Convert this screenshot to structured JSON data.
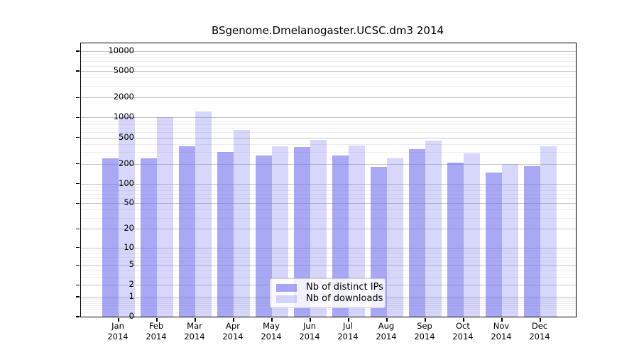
{
  "title": "BSgenome.Dmelanogaster.UCSC.dm3 2014",
  "colors": {
    "ips_bar": "rgba(102,102,238,0.57)",
    "downloads_bar": "rgba(102,102,238,0.26)",
    "major_grid": "#c6c6c6",
    "minor_grid": "#ededed",
    "axis": "#000000"
  },
  "chart_data": {
    "type": "bar",
    "title": "BSgenome.Dmelanogaster.UCSC.dm3 2014",
    "categories": [
      "Jan 2014",
      "Feb 2014",
      "Mar 2014",
      "Apr 2014",
      "May 2014",
      "Jun 2014",
      "Jul 2014",
      "Aug 2014",
      "Sep 2014",
      "Oct 2014",
      "Nov 2014",
      "Dec 2014"
    ],
    "series": [
      {
        "name": "Nb of distinct IPs",
        "values": [
          240,
          240,
          370,
          300,
          270,
          355,
          265,
          180,
          330,
          210,
          148,
          185
        ]
      },
      {
        "name": "Nb of downloads",
        "values": [
          1050,
          1010,
          1230,
          650,
          370,
          460,
          375,
          240,
          450,
          290,
          200,
          365
        ]
      }
    ],
    "y_scale": "log10(value+1)",
    "y_ticks": [
      0,
      1,
      2,
      5,
      10,
      20,
      50,
      100,
      200,
      500,
      1000,
      2000,
      5000,
      10000
    ],
    "ylim": [
      0,
      13000
    ],
    "xlabel": "",
    "ylabel": "",
    "grid": true,
    "legend_position": "lower-center"
  }
}
